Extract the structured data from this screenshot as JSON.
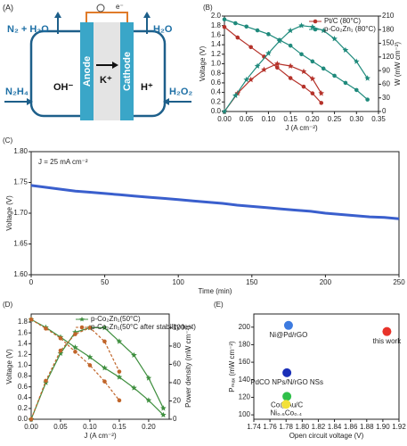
{
  "diagram": {
    "label": "(A)",
    "electron": "e⁻",
    "outputs": {
      "left": "N₂ + H₂O",
      "right": "H₂O"
    },
    "inputs": {
      "left": "N₂H₄",
      "right": "H₂O₂"
    },
    "ions": {
      "left": "OH⁻",
      "middle": "K⁺",
      "right": "H⁺"
    },
    "electrodes": {
      "anode": "Anode",
      "cathode": "Cathode"
    }
  },
  "chart_data": [
    {
      "type": "line",
      "label": "(B)",
      "xlabel": "J (A cm⁻²)",
      "ylabel": "Voltage (V)",
      "y2label": "W (mW cm⁻²)",
      "xlim": [
        0,
        0.35
      ],
      "xticks": [
        {
          "value": 0,
          "label": "0.00"
        },
        0.05,
        {
          "value": 0.1,
          "label": "0.10"
        },
        0.15,
        {
          "value": 0.2,
          "label": "0.20"
        },
        0.25,
        {
          "value": 0.3,
          "label": "0.30"
        },
        0.35
      ],
      "ylim": [
        0,
        2.0
      ],
      "yticks": [
        {
          "value": 0,
          "label": "0.0"
        },
        0.2,
        0.4,
        0.6,
        0.8,
        {
          "value": 1,
          "label": "1.0"
        },
        1.2,
        1.4,
        1.6,
        1.8,
        {
          "value": 2,
          "label": "2.0"
        }
      ],
      "y2lim": [
        0,
        210
      ],
      "y2ticks": [
        0,
        30,
        60,
        90,
        120,
        150,
        180,
        210
      ],
      "legend": "upper right",
      "series": [
        {
          "name": "Pt/C (80°C)",
          "color": "#b5322a",
          "marker": "circle",
          "x": [
            0,
            0.03,
            0.06,
            0.09,
            0.12,
            0.15,
            0.18,
            0.2,
            0.22
          ],
          "values": [
            1.77,
            1.55,
            1.35,
            1.15,
            0.92,
            0.7,
            0.52,
            0.38,
            0.18
          ]
        },
        {
          "name": "p-Co₂Zn₁ (80°C)",
          "color": "#1f8a7c",
          "marker": "circle",
          "x": [
            0,
            0.025,
            0.05,
            0.075,
            0.1,
            0.125,
            0.15,
            0.175,
            0.2,
            0.225,
            0.25,
            0.275,
            0.3,
            0.325
          ],
          "values": [
            1.93,
            1.85,
            1.78,
            1.7,
            1.62,
            1.5,
            1.38,
            1.2,
            1.05,
            0.9,
            0.75,
            0.6,
            0.45,
            0.25
          ]
        },
        {
          "axis": "y2",
          "color": "#b5322a",
          "marker": "star",
          "x": [
            0,
            0.03,
            0.06,
            0.09,
            0.12,
            0.15,
            0.18,
            0.2,
            0.22
          ],
          "values": [
            0,
            40,
            70,
            92,
            105,
            100,
            88,
            72,
            40
          ]
        },
        {
          "axis": "y2",
          "color": "#1f8a7c",
          "marker": "star",
          "x": [
            0,
            0.025,
            0.05,
            0.075,
            0.1,
            0.125,
            0.15,
            0.175,
            0.2,
            0.225,
            0.25,
            0.275,
            0.3,
            0.325
          ],
          "values": [
            0,
            35,
            70,
            100,
            128,
            155,
            178,
            189,
            186,
            178,
            160,
            135,
            110,
            73
          ]
        }
      ]
    },
    {
      "type": "line",
      "label": "(C)",
      "xlabel": "Time (min)",
      "ylabel": "Voltage (V)",
      "annotation": "J = 25 mA cm⁻²",
      "xlim": [
        0,
        250
      ],
      "xticks": [
        0,
        50,
        100,
        150,
        200,
        250
      ],
      "ylim": [
        1.6,
        1.8
      ],
      "yticks": [
        {
          "value": 1.6,
          "label": "1.60"
        },
        1.65,
        {
          "value": 1.7,
          "label": "1.70"
        },
        1.75,
        {
          "value": 1.8,
          "label": "1.80"
        }
      ],
      "series": [
        {
          "color": "#3a5fcd",
          "x": [
            0,
            10,
            20,
            30,
            40,
            50,
            60,
            70,
            80,
            90,
            100,
            110,
            120,
            130,
            140,
            150,
            160,
            170,
            180,
            190,
            200,
            210,
            220,
            230,
            240,
            250
          ],
          "values": [
            1.745,
            1.742,
            1.739,
            1.736,
            1.734,
            1.732,
            1.73,
            1.728,
            1.726,
            1.724,
            1.722,
            1.72,
            1.718,
            1.716,
            1.713,
            1.711,
            1.709,
            1.707,
            1.705,
            1.703,
            1.7,
            1.698,
            1.696,
            1.694,
            1.693,
            1.691
          ]
        }
      ]
    },
    {
      "type": "line",
      "label": "(D)",
      "xlabel": "J (A cm⁻²)",
      "ylabel": "Voltage (V)",
      "y2label": "Power density (mW cm⁻²)",
      "xlim": [
        0,
        0.235
      ],
      "xticks": [
        {
          "value": 0,
          "label": "0.00"
        },
        0.05,
        {
          "value": 0.1,
          "label": "0.10"
        },
        0.15,
        {
          "value": 0.2,
          "label": "0.20"
        }
      ],
      "ylim": [
        0,
        1.95
      ],
      "yticks": [
        {
          "value": 0,
          "label": "0.0"
        },
        0.2,
        0.4,
        0.6,
        0.8,
        {
          "value": 1,
          "label": "1.0"
        },
        1.2,
        1.4,
        1.6,
        1.8
      ],
      "y2lim": [
        0,
        115
      ],
      "y2ticks": [
        0,
        20,
        40,
        60,
        80,
        100
      ],
      "legend": "upper center",
      "series": [
        {
          "name": "p-Co₂Zn₁(50°C)",
          "color": "#3f8f3f",
          "marker": "star",
          "x": [
            0,
            0.025,
            0.05,
            0.075,
            0.1,
            0.125,
            0.15,
            0.175,
            0.2,
            0.225
          ],
          "values": [
            1.85,
            1.7,
            1.52,
            1.33,
            1.15,
            0.95,
            0.78,
            0.58,
            0.35,
            0.08
          ]
        },
        {
          "name": "p-Co₂Zn₁(50°C after stability test)",
          "color": "#c0652a",
          "marker": "circle",
          "dashed": true,
          "x": [
            0,
            0.025,
            0.05,
            0.075,
            0.1,
            0.125,
            0.15
          ],
          "values": [
            1.85,
            1.68,
            1.5,
            1.25,
            1.0,
            0.7,
            0.35
          ]
        },
        {
          "axis": "y2",
          "color": "#3f8f3f",
          "marker": "star",
          "x": [
            0,
            0.025,
            0.05,
            0.075,
            0.1,
            0.125,
            0.15,
            0.175,
            0.2,
            0.225
          ],
          "values": [
            0,
            40,
            72,
            95,
            100,
            100,
            85,
            70,
            45,
            12
          ]
        },
        {
          "axis": "y2",
          "color": "#c0652a",
          "marker": "circle",
          "dashed": true,
          "x": [
            0,
            0.025,
            0.05,
            0.075,
            0.1,
            0.125,
            0.15
          ],
          "values": [
            0,
            42,
            75,
            93,
            100,
            85,
            52
          ]
        }
      ]
    },
    {
      "type": "scatter",
      "label": "(E)",
      "xlabel": "Open circuit voltage (V)",
      "ylabel": "Pₘₐₓ (mW cm⁻²)",
      "xlim": [
        1.74,
        1.92
      ],
      "xticks": [
        1.74,
        1.76,
        1.78,
        {
          "value": 1.8,
          "label": "1.80"
        },
        1.82,
        1.84,
        1.86,
        1.88,
        {
          "value": 1.9,
          "label": "1.90"
        },
        1.92
      ],
      "ylim": [
        95,
        215
      ],
      "yticks": [
        100,
        120,
        140,
        160,
        180,
        200
      ],
      "series": [
        {
          "name": "Ni@Pd/rGO",
          "color": "#3d7be0",
          "x": [
            1.783
          ],
          "values": [
            202
          ]
        },
        {
          "name": "this work",
          "color": "#e8332a",
          "x": [
            1.905
          ],
          "values": [
            195
          ]
        },
        {
          "name": "PdCO NPs/N/rGO NSs",
          "color": "#1a2fb8",
          "x": [
            1.781
          ],
          "values": [
            148
          ]
        },
        {
          "name": "Co@Au/C",
          "color": "#2fc04a",
          "x": [
            1.781
          ],
          "values": [
            121
          ]
        },
        {
          "name": "Ni₀.₆Co₀.₄",
          "color": "#f2e03a",
          "x": [
            1.78
          ],
          "values": [
            112
          ]
        }
      ]
    }
  ]
}
